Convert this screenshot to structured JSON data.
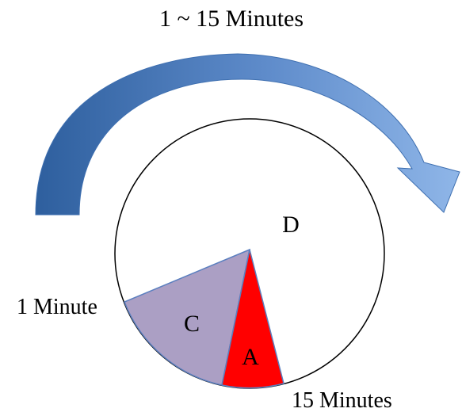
{
  "title": "1 ~ 15 Minutes",
  "labels": {
    "region_d": "D",
    "region_c": "C",
    "region_a": "A",
    "start_marker": "1 Minute",
    "end_marker": "15 Minutes"
  },
  "colors": {
    "arrow_dark": "#2E5F9E",
    "arrow_light": "#8FB6E8",
    "sector_c": "#AB9FC4",
    "sector_a": "#FF0000",
    "circle_stroke": "#000000",
    "sector_stroke": "#5B7FBF"
  },
  "icons": {
    "arrow": "curved-arrow-clockwise"
  }
}
